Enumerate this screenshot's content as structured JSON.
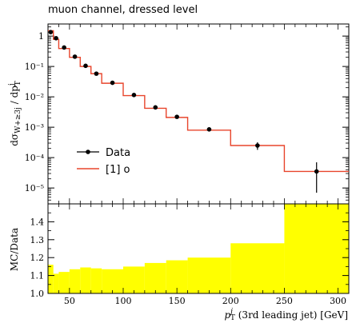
{
  "chart_data": [
    {
      "type": "line",
      "title": "muon channel, dressed level",
      "ylabel": "dσ_{W+≥3j}/dp_T^j",
      "xlabel": "",
      "xlim": [
        30,
        310
      ],
      "ylim": [
        3e-06,
        2.5
      ],
      "yscale": "log",
      "y_tick_labels": [
        "1",
        "10⁻¹",
        "10⁻²",
        "10⁻³",
        "10⁻⁴",
        "10⁻⁵"
      ],
      "y_tick_values": [
        1,
        0.1,
        0.01,
        0.001,
        0.0001,
        1e-05
      ],
      "legend_position": "lower-left",
      "series": [
        {
          "name": "Data",
          "kind": "points-with-errors",
          "color": "#000000",
          "x": [
            32.5,
            37.5,
            45,
            55,
            65,
            75,
            90,
            110,
            130,
            150,
            180,
            225,
            280
          ],
          "y": [
            1.35,
            0.85,
            0.42,
            0.21,
            0.105,
            0.058,
            0.029,
            0.0115,
            0.0045,
            0.0022,
            0.00085,
            0.00025,
            3.5e-05
          ],
          "yerr_low": [
            0.04,
            0.03,
            0.015,
            0.008,
            0.005,
            0.003,
            0.0015,
            0.0007,
            0.0003,
            0.00018,
            8e-05,
            7e-05,
            2.8e-05
          ],
          "yerr_high": [
            0.04,
            0.03,
            0.015,
            0.008,
            0.005,
            0.003,
            0.0015,
            0.0007,
            0.0003,
            0.00018,
            8e-05,
            7e-05,
            3.5e-05
          ]
        },
        {
          "name": "[1] o",
          "kind": "histogram-step",
          "color": "#e8452c",
          "bin_edges": [
            30,
            35,
            40,
            50,
            60,
            70,
            80,
            100,
            120,
            140,
            160,
            200,
            250,
            310
          ],
          "values": [
            1.5,
            0.78,
            0.39,
            0.2,
            0.1,
            0.058,
            0.028,
            0.011,
            0.0042,
            0.0021,
            0.0008,
            0.00025,
            3.5e-05
          ]
        }
      ]
    },
    {
      "type": "bar",
      "ylabel": "MC/Data",
      "xlabel": "p_T^j (3rd leading jet) [GeV]",
      "xlim": [
        30,
        310
      ],
      "ylim": [
        1.0,
        1.5
      ],
      "x_ticks": [
        50,
        100,
        150,
        200,
        250,
        300
      ],
      "y_ticks": [
        1.0,
        1.1,
        1.2,
        1.3,
        1.4
      ],
      "band_color": "#ffff00",
      "bin_edges": [
        30,
        35,
        40,
        50,
        60,
        70,
        80,
        100,
        120,
        140,
        160,
        200,
        250,
        310
      ],
      "values": [
        1.16,
        1.11,
        1.12,
        1.135,
        1.145,
        1.14,
        1.135,
        1.15,
        1.17,
        1.185,
        1.2,
        1.28,
        1.5
      ]
    }
  ]
}
